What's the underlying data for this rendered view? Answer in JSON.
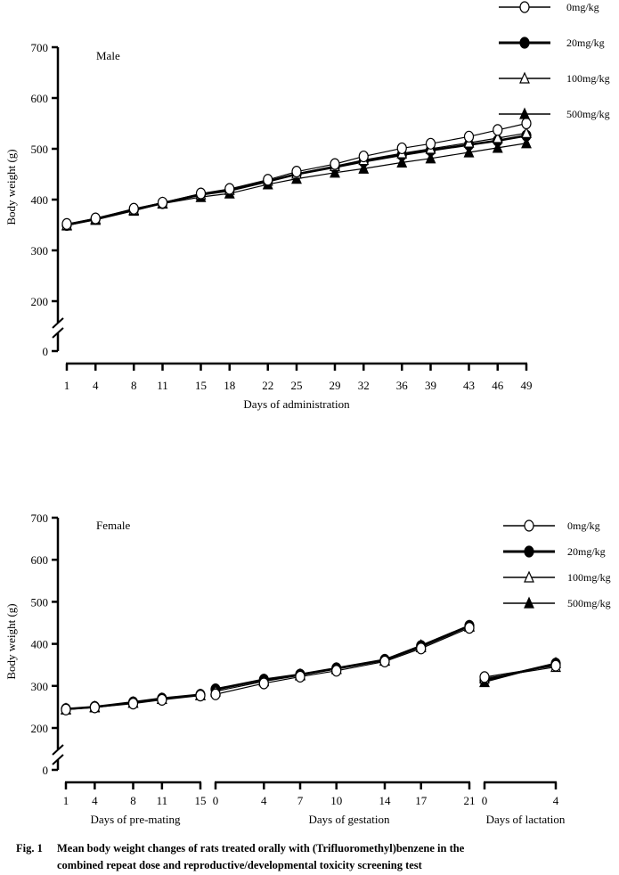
{
  "caption": {
    "figure_label": "Fig. 1",
    "line1": "Mean body weight changes of rats treated orally with (Trifluoromethyl)benzene in the",
    "line2": "combined repeat dose and reproductive/developmental toxicity screening test"
  },
  "legend": [
    {
      "label": "0mg/kg",
      "marker": "open-circle",
      "line": "thin"
    },
    {
      "label": "20mg/kg",
      "marker": "filled-circle",
      "line": "thick"
    },
    {
      "label": "100mg/kg",
      "marker": "open-triangle",
      "line": "thin"
    },
    {
      "label": "500mg/kg",
      "marker": "filled-triangle",
      "line": "thin"
    }
  ],
  "chart_data": [
    {
      "type": "line",
      "panel_label": "Male",
      "title": "",
      "ylabel": "Body weight (g)",
      "xlabel": "Days of administration",
      "yticks": [
        0,
        200,
        300,
        400,
        500,
        600,
        700
      ],
      "ylim": [
        0,
        700
      ],
      "y_axis_break": "between 0 and 200",
      "legend_position": "top-right",
      "grid": false,
      "segments": [
        {
          "xlabel": "Days of administration",
          "x": [
            1,
            4,
            8,
            11,
            15,
            18,
            22,
            25,
            29,
            32,
            36,
            39,
            43,
            46,
            49
          ],
          "series": [
            {
              "name": "0mg/kg",
              "values": [
                352,
                363,
                382,
                394,
                412,
                421,
                439,
                455,
                470,
                485,
                501,
                510,
                524,
                537,
                550
              ]
            },
            {
              "name": "20mg/kg",
              "values": [
                350,
                362,
                380,
                393,
                410,
                418,
                436,
                450,
                464,
                475,
                488,
                497,
                508,
                516,
                526
              ]
            },
            {
              "name": "100mg/kg",
              "values": [
                350,
                362,
                380,
                393,
                410,
                419,
                437,
                451,
                466,
                478,
                491,
                500,
                512,
                521,
                531
              ]
            },
            {
              "name": "500mg/kg",
              "values": [
                349,
                360,
                378,
                392,
                405,
                412,
                430,
                441,
                453,
                461,
                473,
                481,
                493,
                502,
                511
              ]
            }
          ]
        }
      ]
    },
    {
      "type": "line",
      "panel_label": "Female",
      "title": "",
      "ylabel": "Body weight (g)",
      "yticks": [
        0,
        200,
        300,
        400,
        500,
        600,
        700
      ],
      "ylim": [
        0,
        700
      ],
      "y_axis_break": "between 0 and 200",
      "legend_position": "right",
      "grid": false,
      "segments": [
        {
          "xlabel": "Days of pre-mating",
          "x": [
            1,
            4,
            8,
            11,
            15
          ],
          "series": [
            {
              "name": "0mg/kg",
              "values": [
                244,
                249,
                258,
                267,
                277
              ]
            },
            {
              "name": "20mg/kg",
              "values": [
                245,
                250,
                261,
                270,
                279
              ]
            },
            {
              "name": "100mg/kg",
              "values": [
                245,
                250,
                260,
                269,
                278
              ]
            },
            {
              "name": "500mg/kg",
              "values": [
                244,
                249,
                260,
                269,
                278
              ]
            }
          ]
        },
        {
          "xlabel": "Days of gestation",
          "x": [
            0,
            4,
            7,
            10,
            14,
            17,
            21
          ],
          "series": [
            {
              "name": "0mg/kg",
              "values": [
                280,
                306,
                322,
                336,
                358,
                389,
                438
              ]
            },
            {
              "name": "20mg/kg",
              "values": [
                292,
                315,
                327,
                342,
                362,
                395,
                443
              ]
            },
            {
              "name": "100mg/kg",
              "values": [
                287,
                311,
                325,
                340,
                360,
                392,
                441
              ]
            },
            {
              "name": "500mg/kg",
              "values": [
                290,
                314,
                327,
                341,
                361,
                396,
                442
              ]
            }
          ]
        },
        {
          "xlabel": "Days of lactation",
          "x": [
            0,
            4
          ],
          "series": [
            {
              "name": "0mg/kg",
              "values": [
                321,
                348
              ]
            },
            {
              "name": "20mg/kg",
              "values": [
                313,
                353
              ]
            },
            {
              "name": "100mg/kg",
              "values": [
                318,
                345
              ]
            },
            {
              "name": "500mg/kg",
              "values": [
                309,
                354
              ]
            }
          ]
        }
      ]
    }
  ]
}
